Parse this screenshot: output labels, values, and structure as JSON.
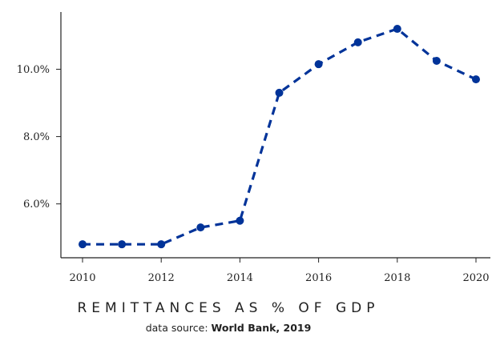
{
  "chart_data": {
    "type": "line",
    "title": "REMITTANCES AS % OF GDP",
    "source_label": "data source:",
    "source_name": "World Bank, 2019",
    "color": "#003399",
    "xlim": [
      2010,
      2020
    ],
    "ylim": [
      4.4,
      11.7
    ],
    "x_ticks": [
      2010,
      2012,
      2014,
      2016,
      2018,
      2020
    ],
    "x_tick_labels": [
      "2010",
      "2012",
      "2014",
      "2016",
      "2018",
      "2020"
    ],
    "y_ticks": [
      6,
      8,
      10
    ],
    "y_tick_labels": [
      "6.0%",
      "8.0%",
      "10.0%"
    ],
    "grid": false,
    "series": [
      {
        "x": [
          2010,
          2011,
          2012,
          2013,
          2014,
          2015,
          2016,
          2017,
          2018,
          2019,
          2020
        ],
        "y": [
          4.8,
          4.8,
          4.8,
          5.3,
          5.5,
          9.3,
          10.15,
          10.8,
          11.2,
          10.25,
          9.7
        ]
      }
    ]
  }
}
